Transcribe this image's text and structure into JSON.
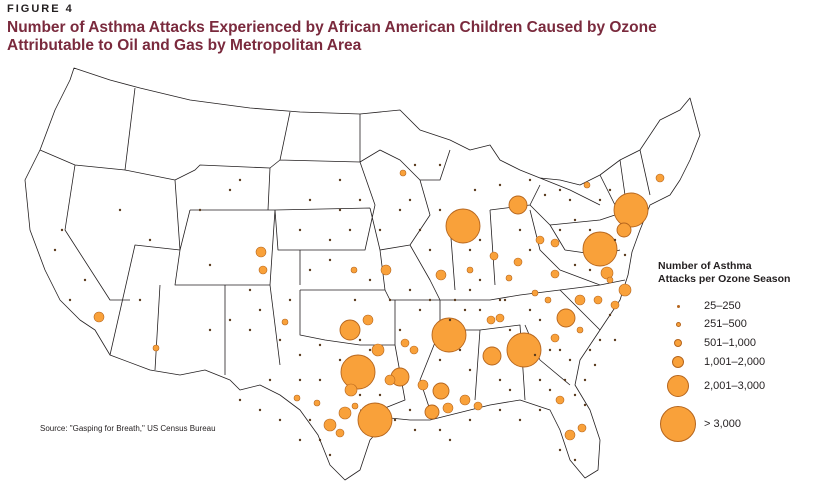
{
  "figure_label": "FIGURE 4",
  "title": "Number of Asthma Attacks Experienced by African American Children Caused by Ozone Attributable to Oil and Gas by Metropolitan Area",
  "legend": {
    "title_line1": "Number of Asthma",
    "title_line2": "Attacks per Ozone Season",
    "items": [
      {
        "label": "25–250"
      },
      {
        "label": "251–500"
      },
      {
        "label": "501–1,000"
      },
      {
        "label": "1,001–2,000"
      },
      {
        "label": "2,001–3,000"
      },
      {
        "label": "> 3,000"
      }
    ]
  },
  "source": "Source: \"Gasping for Breath,\" US Census Bureau",
  "colors": {
    "bubble_fill": "#f9a13a",
    "bubble_stroke": "#b5651d",
    "state_stroke": "#231f20",
    "title": "#7a2a3d"
  }
}
